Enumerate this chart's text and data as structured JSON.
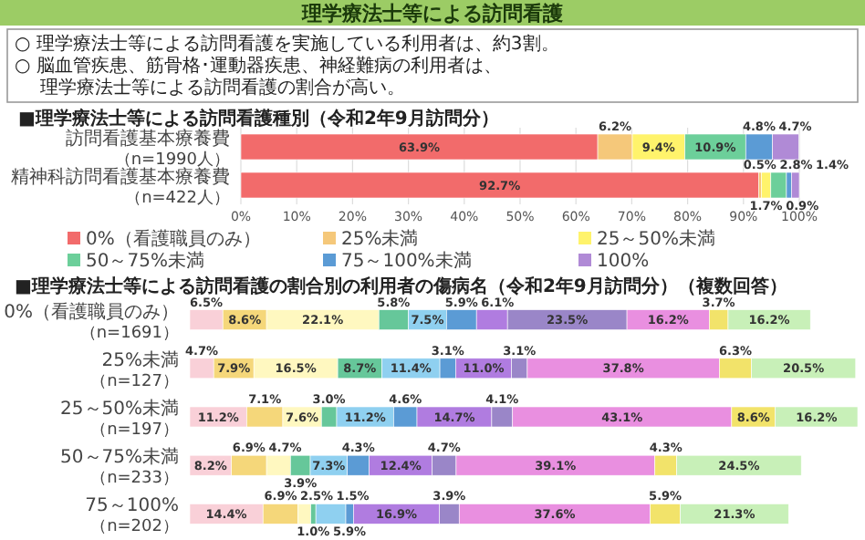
{
  "chart_data": [
    {
      "type": "bar",
      "orientation": "horizontal",
      "stacked": true,
      "title": "■理学療法士等による訪問看護種別（令和2年9月訪問分）",
      "annotations": [
        "理学療法士等による訪問看護",
        "○ 理学療法士等による訪問看護を実施している利用者は、約3割。",
        "○ 脳血管疾患、筋骨格･運動器疾患、神経難病の利用者は、理学療法士等による訪問看護の割合が高い。"
      ],
      "categories": [
        "訪問看護基本療養費（n=1990人）",
        "精神科訪問看護基本療養費（n=422人）"
      ],
      "xlim": [
        0,
        100
      ],
      "xticks": [
        {
          "value": 0,
          "label": "0%"
        },
        {
          "value": 10,
          "label": "10%"
        },
        {
          "value": 20,
          "label": "20%"
        },
        {
          "value": 30,
          "label": "30%"
        },
        {
          "value": 40,
          "label": "40%"
        },
        {
          "value": 50,
          "label": "50%"
        },
        {
          "value": 60,
          "label": "60%"
        },
        {
          "value": 70,
          "label": "70%"
        },
        {
          "value": 80,
          "label": "80%"
        },
        {
          "value": 90,
          "label": "90%"
        },
        {
          "value": 100,
          "label": "100%"
        }
      ],
      "grid": "x",
      "legend": "bottom",
      "series": [
        {
          "name": "0%（看護職員のみ）",
          "color": "#f26b6b",
          "values": [
            63.9,
            92.7
          ],
          "value_labels": [
            "63.9%",
            "92.7%"
          ]
        },
        {
          "name": "25%未満",
          "color": "#f5c87a",
          "values": [
            6.2,
            0.5
          ],
          "value_labels": [
            "6.2%",
            "0.5%"
          ]
        },
        {
          "name": "25～50%未満",
          "color": "#fff36b",
          "values": [
            9.4,
            1.7
          ],
          "value_labels": [
            "9.4%",
            "1.7%"
          ]
        },
        {
          "name": "50～75%未満",
          "color": "#6ccf9a",
          "values": [
            10.9,
            2.8
          ],
          "value_labels": [
            "10.9%",
            "2.8%"
          ]
        },
        {
          "name": "75～100%未満",
          "color": "#5b9bd5",
          "values": [
            4.8,
            0.9
          ],
          "value_labels": [
            "4.8%",
            "0.9%"
          ]
        },
        {
          "name": "100%",
          "color": "#b08ad6",
          "values": [
            4.7,
            1.4
          ],
          "value_labels": [
            "4.7%",
            "1.4%"
          ]
        }
      ]
    },
    {
      "type": "bar",
      "orientation": "horizontal",
      "stacked": true,
      "title": "■理学療法士等による訪問看護の割合別の利用者の傷病名（令和2年9月訪問分）（複数回答）",
      "categories": [
        "0%（看護職員のみ）（n=1691）",
        "25%未満（n=127）",
        "25～50%未満（n=197）",
        "50～75%未満（n=233）",
        "75～100%（n=202）"
      ],
      "tick_labels": "y",
      "series": [
        {
          "color": "#f9d0d8",
          "values": [
            6.5,
            4.7,
            11.2,
            8.2,
            14.4
          ],
          "value_labels": [
            "6.5%",
            "4.7%",
            "11.2%",
            "8.2%",
            "14.4%"
          ]
        },
        {
          "color": "#f5d77a",
          "values": [
            8.6,
            7.9,
            7.1,
            6.9,
            6.9
          ],
          "value_labels": [
            "8.6%",
            "7.9%",
            "7.1%",
            "6.9%",
            "6.9%"
          ]
        },
        {
          "color": "#fff8c0",
          "values": [
            22.1,
            16.5,
            7.6,
            4.7,
            2.5
          ],
          "value_labels": [
            "22.1%",
            "16.5%",
            "7.6%",
            "4.7%",
            "2.5%"
          ]
        },
        {
          "color": "#66c79a",
          "values": [
            5.8,
            8.7,
            3.0,
            3.9,
            1.0
          ],
          "value_labels": [
            "5.8%",
            "8.7%",
            "3.0%",
            "3.9%",
            "1.0%"
          ]
        },
        {
          "color": "#8fd0f0",
          "values": [
            7.5,
            11.4,
            11.2,
            7.3,
            5.9
          ],
          "value_labels": [
            "7.5%",
            "11.4%",
            "11.2%",
            "7.3%",
            "5.9%"
          ]
        },
        {
          "color": "#5b9bd5",
          "values": [
            5.9,
            3.1,
            4.6,
            4.3,
            1.5
          ],
          "value_labels": [
            "5.9%",
            "3.1%",
            "4.6%",
            "4.3%",
            "1.5%"
          ]
        },
        {
          "color": "#b07ce0",
          "values": [
            6.1,
            11.0,
            14.7,
            12.4,
            16.9
          ],
          "value_labels": [
            "6.1%",
            "11.0%",
            "14.7%",
            "12.4%",
            "16.9%"
          ]
        },
        {
          "color": "#9a86c8",
          "values": [
            23.5,
            3.1,
            4.1,
            4.7,
            3.9
          ],
          "value_labels": [
            "23.5%",
            "3.1%",
            "4.1%",
            "4.7%",
            "3.9%"
          ]
        },
        {
          "color": "#e98fe0",
          "values": [
            16.2,
            37.8,
            43.1,
            39.1,
            37.6
          ],
          "value_labels": [
            "16.2%",
            "37.8%",
            "43.1%",
            "39.1%",
            "37.6%"
          ]
        },
        {
          "color": "#f2e36a",
          "values": [
            3.7,
            6.3,
            8.6,
            4.3,
            5.9
          ],
          "value_labels": [
            "3.7%",
            "6.3%",
            "8.6%",
            "4.3%",
            "5.9%"
          ]
        },
        {
          "color": "#c8f0b8",
          "values": [
            16.2,
            20.5,
            16.2,
            24.5,
            21.3
          ],
          "value_labels": [
            "16.2%",
            "20.5%",
            "16.2%",
            "24.5%",
            "21.3%"
          ]
        }
      ]
    }
  ]
}
